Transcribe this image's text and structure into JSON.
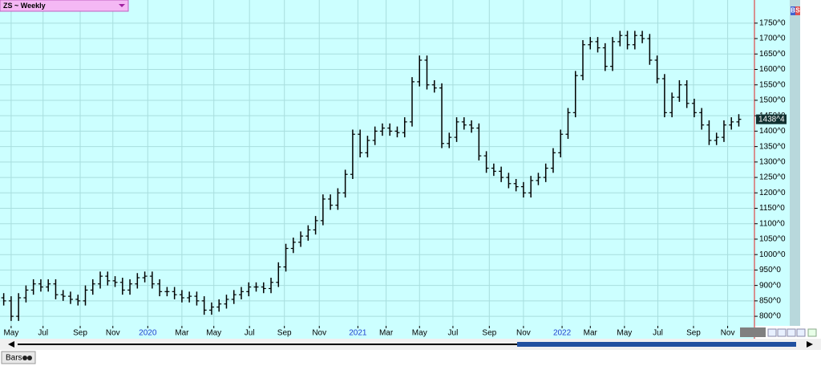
{
  "chart_data": {
    "type": "ohlc",
    "title": "ZS ~ Weekly",
    "open": [
      860,
      850,
      800,
      860,
      885,
      905,
      895,
      905,
      870,
      865,
      855,
      850,
      885,
      905,
      930,
      915,
      910,
      885,
      905,
      925,
      930,
      905,
      880,
      880,
      870,
      860,
      865,
      850,
      820,
      830,
      840,
      855,
      870,
      880,
      895,
      895,
      890,
      910,
      960,
      1020,
      1040,
      1060,
      1080,
      1110,
      1180,
      1160,
      1200,
      1260,
      1390,
      1330,
      1370,
      1400,
      1410,
      1400,
      1395,
      1430,
      1560,
      1630,
      1550,
      1540,
      1360,
      1380,
      1430,
      1420,
      1410,
      1320,
      1280,
      1270,
      1250,
      1230,
      1220,
      1200,
      1240,
      1250,
      1280,
      1330,
      1390,
      1460,
      1580,
      1680,
      1690,
      1670,
      1610,
      1690,
      1710,
      1680,
      1710,
      1700,
      1630,
      1570,
      1460,
      1510,
      1550,
      1490,
      1460,
      1420,
      1370,
      1380,
      1420,
      1430
    ],
    "high": [
      875,
      865,
      875,
      900,
      920,
      920,
      920,
      920,
      885,
      880,
      870,
      900,
      920,
      945,
      945,
      930,
      925,
      920,
      940,
      945,
      945,
      920,
      895,
      895,
      885,
      880,
      880,
      865,
      845,
      855,
      870,
      885,
      895,
      910,
      910,
      910,
      925,
      975,
      1035,
      1055,
      1075,
      1095,
      1125,
      1195,
      1195,
      1215,
      1275,
      1405,
      1405,
      1385,
      1415,
      1425,
      1425,
      1415,
      1445,
      1575,
      1645,
      1645,
      1565,
      1555,
      1395,
      1445,
      1445,
      1435,
      1425,
      1335,
      1295,
      1285,
      1265,
      1245,
      1235,
      1255,
      1265,
      1295,
      1345,
      1405,
      1475,
      1595,
      1695,
      1705,
      1705,
      1685,
      1705,
      1725,
      1725,
      1725,
      1725,
      1715,
      1645,
      1585,
      1525,
      1565,
      1565,
      1505,
      1475,
      1435,
      1395,
      1435,
      1445,
      1455
    ],
    "low": [
      835,
      785,
      785,
      845,
      870,
      880,
      880,
      855,
      850,
      840,
      835,
      835,
      870,
      890,
      900,
      895,
      870,
      870,
      890,
      910,
      890,
      865,
      865,
      855,
      845,
      845,
      835,
      805,
      805,
      815,
      825,
      840,
      855,
      865,
      880,
      875,
      875,
      895,
      945,
      1005,
      1025,
      1045,
      1065,
      1095,
      1145,
      1145,
      1185,
      1245,
      1315,
      1315,
      1355,
      1385,
      1385,
      1380,
      1380,
      1415,
      1545,
      1535,
      1525,
      1345,
      1345,
      1365,
      1405,
      1395,
      1305,
      1265,
      1255,
      1235,
      1215,
      1205,
      1185,
      1185,
      1225,
      1235,
      1265,
      1315,
      1375,
      1445,
      1565,
      1665,
      1655,
      1595,
      1595,
      1675,
      1665,
      1665,
      1685,
      1615,
      1555,
      1445,
      1445,
      1495,
      1475,
      1445,
      1405,
      1355,
      1355,
      1365,
      1405,
      1415
    ],
    "close": [
      850,
      800,
      860,
      885,
      905,
      895,
      905,
      870,
      865,
      855,
      850,
      885,
      905,
      930,
      915,
      910,
      885,
      905,
      925,
      930,
      905,
      880,
      880,
      870,
      860,
      865,
      850,
      820,
      830,
      840,
      855,
      870,
      880,
      895,
      895,
      890,
      910,
      960,
      1020,
      1040,
      1060,
      1080,
      1110,
      1180,
      1160,
      1200,
      1260,
      1390,
      1330,
      1370,
      1400,
      1410,
      1400,
      1395,
      1430,
      1560,
      1630,
      1550,
      1540,
      1360,
      1380,
      1430,
      1420,
      1410,
      1320,
      1280,
      1270,
      1250,
      1230,
      1220,
      1200,
      1240,
      1250,
      1280,
      1330,
      1390,
      1460,
      1580,
      1680,
      1690,
      1670,
      1610,
      1690,
      1710,
      1680,
      1710,
      1700,
      1630,
      1570,
      1460,
      1510,
      1550,
      1490,
      1460,
      1420,
      1370,
      1380,
      1420,
      1430,
      1438.4
    ],
    "color": "#000000",
    "last_price": {
      "value": 1438.4,
      "label": "1438^4"
    },
    "xlim": [
      -0.5,
      101
    ],
    "xticks": [
      {
        "value": 1,
        "label": "May"
      },
      {
        "value": 5.3,
        "label": "Jul"
      },
      {
        "value": 10.3,
        "label": "Sep"
      },
      {
        "value": 14.7,
        "label": "Nov"
      },
      {
        "value": 19.4,
        "label": "2020"
      },
      {
        "value": 24,
        "label": "Mar"
      },
      {
        "value": 28.3,
        "label": "May"
      },
      {
        "value": 33.1,
        "label": "Jul"
      },
      {
        "value": 37.8,
        "label": "Sep"
      },
      {
        "value": 42.5,
        "label": "Nov"
      },
      {
        "value": 47.7,
        "label": "2021"
      },
      {
        "value": 51.5,
        "label": "Mar"
      },
      {
        "value": 56,
        "label": "May"
      },
      {
        "value": 60.5,
        "label": "Jul"
      },
      {
        "value": 65.4,
        "label": "Sep"
      },
      {
        "value": 70,
        "label": "Nov"
      },
      {
        "value": 75.2,
        "label": "2022"
      },
      {
        "value": 79,
        "label": "Mar"
      },
      {
        "value": 83.6,
        "label": "May"
      },
      {
        "value": 88.1,
        "label": "Jul"
      },
      {
        "value": 92.9,
        "label": "Sep"
      },
      {
        "value": 97.5,
        "label": "Nov"
      }
    ],
    "ylim": [
      769,
      1825
    ],
    "yticks": [
      {
        "value": 800,
        "label": "800^0"
      },
      {
        "value": 850,
        "label": "850^0"
      },
      {
        "value": 900,
        "label": "900^0"
      },
      {
        "value": 950,
        "label": "950^0"
      },
      {
        "value": 1000,
        "label": "1000^0"
      },
      {
        "value": 1050,
        "label": "1050^0"
      },
      {
        "value": 1100,
        "label": "1100^0"
      },
      {
        "value": 1150,
        "label": "1150^0"
      },
      {
        "value": 1200,
        "label": "1200^0"
      },
      {
        "value": 1250,
        "label": "1250^0"
      },
      {
        "value": 1300,
        "label": "1300^0"
      },
      {
        "value": 1350,
        "label": "1350^0"
      },
      {
        "value": 1400,
        "label": "1400^0"
      },
      {
        "value": 1450,
        "label": "1450^0"
      },
      {
        "value": 1500,
        "label": "1500^0"
      },
      {
        "value": 1550,
        "label": "1550^0"
      },
      {
        "value": 1600,
        "label": "1600^0"
      },
      {
        "value": 1650,
        "label": "1650^0"
      },
      {
        "value": 1700,
        "label": "1700^0"
      },
      {
        "value": 1750,
        "label": "1750^0"
      }
    ],
    "grid": true
  },
  "ui": {
    "badge": [
      "B",
      "S"
    ],
    "tab": "Bars"
  }
}
